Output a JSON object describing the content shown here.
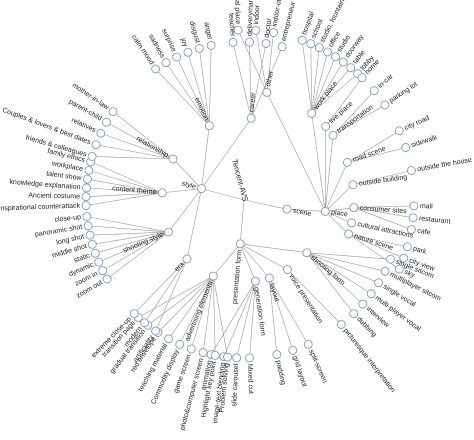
{
  "tree": {
    "root": "Tencent-AVS",
    "categories": [
      {
        "label": "scene",
        "children": [
          {
            "label": "place",
            "children": [
              {
                "label": "work place",
                "children": [
                  "hospital",
                  "school",
                  "studio, fountain",
                  "office",
                  "studio",
                  "doorway",
                  "table",
                  "lobby"
                ]
              },
              {
                "label": "transportation",
                "children": [
                  "in-car",
                  "parking lot"
                ]
              },
              {
                "label": "live place",
                "children": [
                  "home"
                ]
              },
              {
                "label": "road scene",
                "children": [
                  "city road",
                  "sidewalk"
                ]
              },
              {
                "label": "outside building",
                "children": [
                  "outside the house"
                ]
              },
              {
                "label": "consumer sites",
                "children": [
                  "mall",
                  "restaurant",
                  "cafe"
                ]
              },
              {
                "label": "cultural attractions",
                "children": []
              },
              {
                "label": "nature scene",
                "children": [
                  "park",
                  "city view",
                  "sky"
                ]
              },
              {
                "label": "other",
                "children": [
                  "medical place",
                  "indoor",
                  "indoor-other"
                ]
              }
            ]
          }
        ]
      },
      {
        "label": "presentation form",
        "children": [
          {
            "label": "shooting form",
            "children": [
              "single sitcom",
              "multiplayer sitcom",
              "single vocal",
              "multi-player vocal",
              "interview",
              "dubbing"
            ]
          },
          {
            "label": "voice presentation",
            "children": [
              "picturesque interpretation"
            ]
          },
          {
            "label": "generation form",
            "children": [
              "Mixed cut",
              "slide carousel",
              "image-text blending",
              "animation"
            ]
          },
          {
            "label": "layout",
            "children": [
              "split-screen",
              "grid layout",
              "padding"
            ]
          },
          {
            "label": "advertising elements",
            "children": [
              "Problem solving",
              "Highlight key point",
              "photo&computer screen",
              "game screen",
              "Commodity display",
              "teaching material",
              "red envelope",
              "gradual transition",
              "transition page"
            ]
          }
        ]
      },
      {
        "label": "style",
        "children": [
          {
            "label": "era",
            "children": [
              "artificiality",
              "modern",
              "extreme close-up"
            ]
          },
          {
            "label": "shooting style",
            "children": [
              "zoom out",
              "zoom in",
              "dynamic",
              "static",
              "middle shot",
              "long shot",
              "panoramic shot",
              "close-up"
            ]
          },
          {
            "label": "content theme",
            "children": [
              "inspirational counterattack",
              "Ancient costume",
              "knowledge explanation",
              "talent show",
              "workplace",
              "family ethics"
            ]
          },
          {
            "label": "relationship",
            "children": [
              "friends & colleagues",
              "Couples & lovers & best dates",
              "relatives",
              "parent-child",
              "mother-in-law"
            ]
          },
          {
            "label": "emotion",
            "children": [
              "calm mood",
              "sadness",
              "surprise",
              "joy",
              "disgust",
              "anger"
            ]
          },
          {
            "label": "career",
            "children": [
              "teacher",
              "deliveryman",
              "doctor",
              "entrepreneur"
            ]
          }
        ]
      }
    ]
  }
}
